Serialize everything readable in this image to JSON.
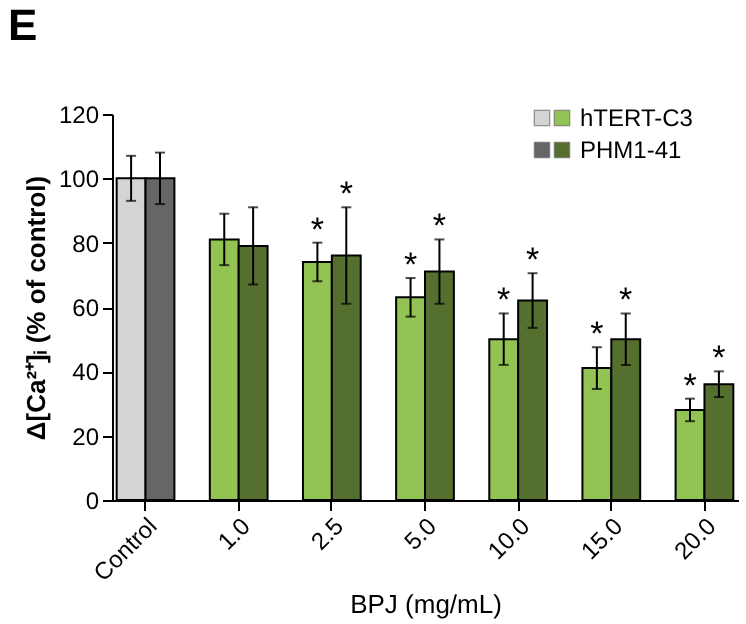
{
  "chart_data": {
    "type": "bar",
    "xlabel": "BPJ (mg/mL)",
    "ylabel": "Δ[Ca²⁺]ᵢ (% of control)",
    "categories": [
      "Control",
      "1.0",
      "2.5",
      "5.0",
      "10.0",
      "15.0",
      "20.0"
    ],
    "series": [
      {
        "name": "hTERT-C3",
        "color": "#92c353",
        "colors": [
          "#d4d4d4",
          "#92c353",
          "#92c353",
          "#92c353",
          "#92c353",
          "#92c353",
          "#92c353"
        ],
        "values": [
          100,
          81,
          74,
          63,
          50,
          41,
          28
        ],
        "errors": [
          7,
          8,
          6,
          6,
          8,
          6.5,
          3.5
        ]
      },
      {
        "name": "PHM1-41",
        "color": "#55702e",
        "colors": [
          "#666666",
          "#55702e",
          "#55702e",
          "#55702e",
          "#55702e",
          "#55702e",
          "#55702e"
        ],
        "values": [
          100,
          79,
          76,
          71,
          62,
          50,
          36
        ],
        "errors": [
          8,
          12,
          15,
          10,
          8.5,
          8,
          4
        ]
      }
    ],
    "ylim": [
      0,
      120
    ],
    "yticks": [
      0,
      20,
      40,
      60,
      80,
      100,
      120
    ],
    "legend": "top right",
    "annotations": [
      "E",
      {
        "text": "*",
        "x": "2.5",
        "y": 80
      },
      {
        "text": "*",
        "x": "5.0",
        "y": 69
      },
      {
        "text": "*",
        "x": "10.0",
        "y": 58
      },
      {
        "text": "*",
        "x": "15.0",
        "y": 47.5
      },
      {
        "text": "*",
        "x": "20.0",
        "y": 31.5
      },
      {
        "text": "*",
        "x": "2.5",
        "y": 91
      },
      {
        "text": "*",
        "x": "5.0",
        "y": 81
      },
      {
        "text": "*",
        "x": "10.0",
        "y": 70.5
      },
      {
        "text": "*",
        "x": "15.0",
        "y": 58
      },
      {
        "text": "*",
        "x": "20.0",
        "y": 40
      }
    ]
  }
}
